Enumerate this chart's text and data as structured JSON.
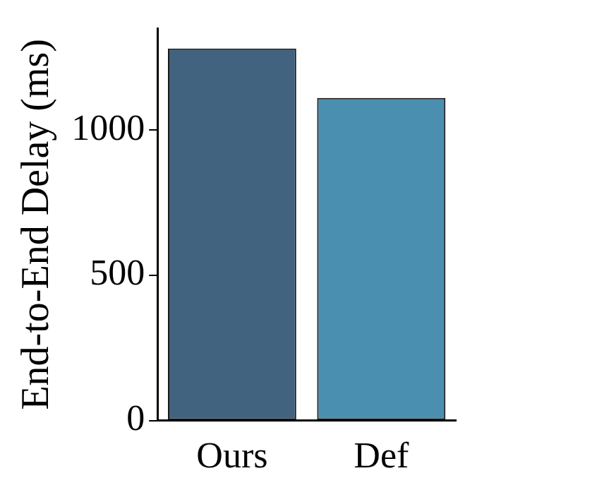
{
  "chart_data": {
    "type": "bar",
    "ylabel": "End-to-End Delay (ms)",
    "categories": [
      "Ours",
      "Def"
    ],
    "values": [
      1280,
      1110
    ],
    "colors": [
      "#41637f",
      "#4a8fb0"
    ],
    "ylim": [
      0,
      1350
    ],
    "yticks": [
      0,
      500,
      1000
    ],
    "grid": false
  }
}
